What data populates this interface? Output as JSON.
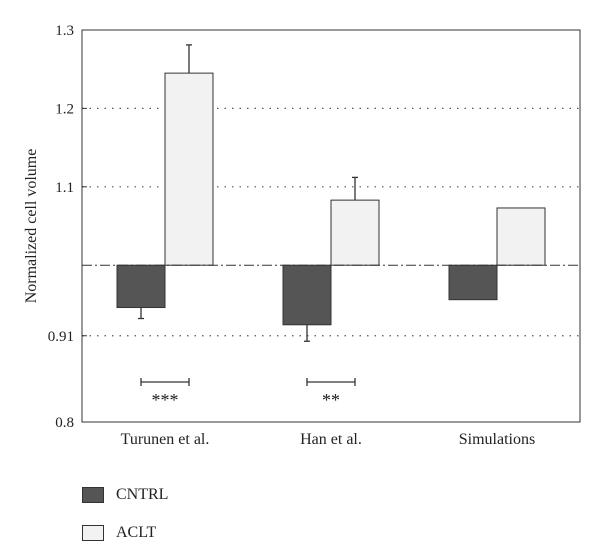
{
  "chart_data": {
    "type": "bar",
    "title": "",
    "xlabel": "",
    "ylabel": "Normalized cell volume",
    "ylim": [
      0.8,
      1.3
    ],
    "yticks": [
      0.8,
      0.91,
      1.1,
      1.2,
      1.3
    ],
    "ytick_labels": [
      "0.8",
      "0.91",
      "1.1",
      "1.2",
      "1.3"
    ],
    "baseline": 1.0,
    "categories": [
      "Turunen et al.",
      "Han et al.",
      "Simulations"
    ],
    "series": [
      {
        "name": "CNTRL",
        "values": [
          0.946,
          0.924,
          0.956
        ],
        "errors": [
          0.014,
          0.021,
          0.0
        ],
        "color": "#555555"
      },
      {
        "name": "ACLT",
        "values": [
          1.245,
          1.083,
          1.073
        ],
        "errors": [
          0.036,
          0.029,
          0.0
        ],
        "color": "#f2f2f2"
      }
    ],
    "significance": [
      "***",
      "**",
      ""
    ],
    "grid": {
      "dotted_at": [
        0.91,
        1.1,
        1.2
      ]
    },
    "legend_position": "bottom-left"
  }
}
